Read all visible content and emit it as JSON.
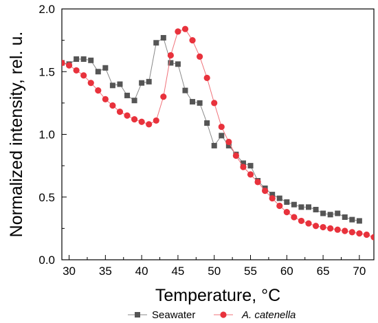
{
  "chart_data": {
    "type": "line",
    "title": "",
    "xlabel": "Temperature, °C",
    "ylabel": "Normalized intensity, rel. u.",
    "xlim": [
      29,
      72
    ],
    "ylim": [
      0,
      2.0
    ],
    "x_ticks": [
      30,
      35,
      40,
      45,
      50,
      55,
      60,
      65,
      70
    ],
    "y_ticks": [
      0.0,
      0.5,
      1.0,
      1.5,
      2.0
    ],
    "x_tick_labels": [
      "30",
      "35",
      "40",
      "45",
      "50",
      "55",
      "60",
      "65",
      "70"
    ],
    "y_tick_labels": [
      "0.0",
      "0.5",
      "1.0",
      "1.5",
      "2.0"
    ],
    "grid": false,
    "legend_position": "bottom",
    "series": [
      {
        "name": "Seawater",
        "color": "#555555",
        "marker": "square",
        "x": [
          29,
          30,
          31,
          32,
          33,
          34,
          35,
          36,
          37,
          38,
          39,
          40,
          41,
          42,
          43,
          44,
          45,
          46,
          47,
          48,
          49,
          50,
          51,
          52,
          53,
          54,
          55,
          56,
          57,
          58,
          59,
          60,
          61,
          62,
          63,
          64,
          65,
          66,
          67,
          68,
          69,
          70
        ],
        "y": [
          1.57,
          1.56,
          1.6,
          1.6,
          1.59,
          1.5,
          1.53,
          1.39,
          1.4,
          1.31,
          1.27,
          1.41,
          1.42,
          1.73,
          1.77,
          1.57,
          1.56,
          1.35,
          1.26,
          1.25,
          1.09,
          0.91,
          0.99,
          0.91,
          0.84,
          0.77,
          0.75,
          0.63,
          0.57,
          0.52,
          0.49,
          0.46,
          0.44,
          0.42,
          0.42,
          0.4,
          0.37,
          0.36,
          0.37,
          0.34,
          0.32,
          0.31
        ]
      },
      {
        "name": "A. catenella",
        "color": "#e8323c",
        "marker": "circle",
        "x": [
          29,
          30,
          31,
          32,
          33,
          34,
          35,
          36,
          37,
          38,
          39,
          40,
          41,
          42,
          43,
          44,
          45,
          46,
          47,
          48,
          49,
          50,
          51,
          52,
          53,
          54,
          55,
          56,
          57,
          58,
          59,
          60,
          61,
          62,
          63,
          64,
          65,
          66,
          67,
          68,
          69,
          70,
          71,
          72
        ],
        "y": [
          1.57,
          1.55,
          1.51,
          1.47,
          1.41,
          1.35,
          1.28,
          1.23,
          1.18,
          1.15,
          1.12,
          1.1,
          1.08,
          1.11,
          1.3,
          1.63,
          1.82,
          1.84,
          1.75,
          1.62,
          1.45,
          1.25,
          1.06,
          0.94,
          0.83,
          0.74,
          0.68,
          0.62,
          0.55,
          0.49,
          0.43,
          0.38,
          0.34,
          0.31,
          0.29,
          0.27,
          0.26,
          0.25,
          0.24,
          0.23,
          0.22,
          0.21,
          0.2,
          0.18
        ]
      }
    ]
  }
}
